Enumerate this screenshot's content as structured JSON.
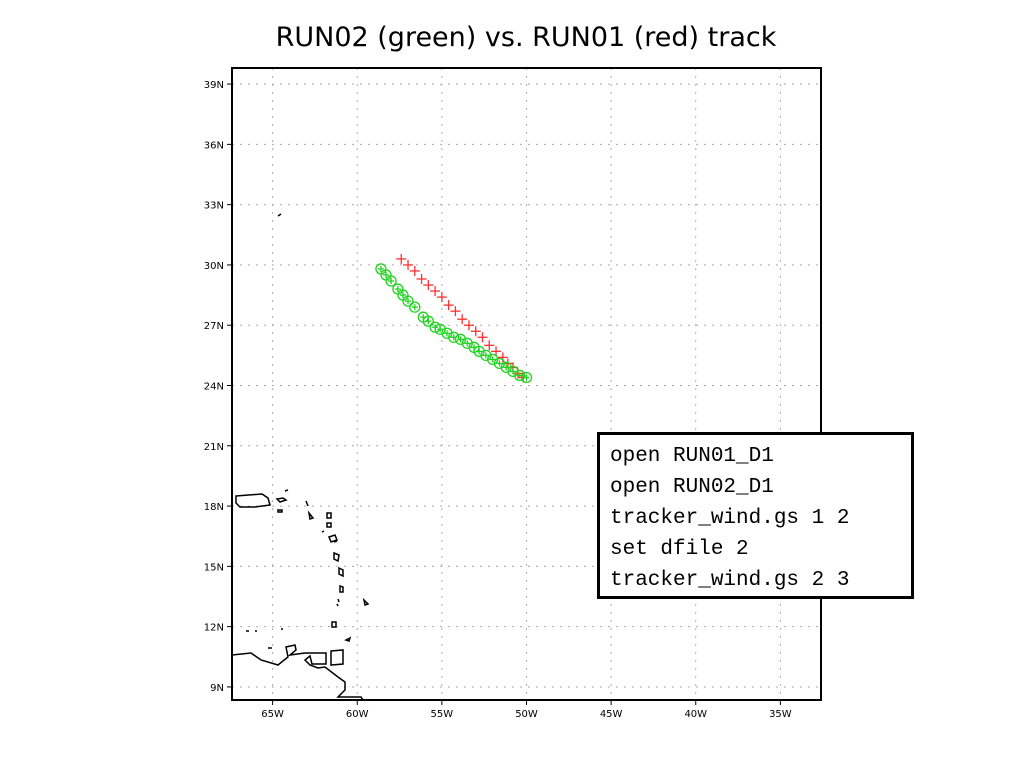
{
  "chart_data": {
    "type": "scatter",
    "title": "RUN02 (green) vs. RUN01 (red) track",
    "xlim": [
      -67.4,
      -32.6
    ],
    "ylim": [
      8.35,
      39.8
    ],
    "x_ticks": [
      -65,
      -60,
      -55,
      -50,
      -45,
      -40,
      -35
    ],
    "x_tick_labels": [
      "65W",
      "60W",
      "55W",
      "50W",
      "45W",
      "40W",
      "35W"
    ],
    "y_ticks": [
      9,
      12,
      15,
      18,
      21,
      24,
      27,
      30,
      33,
      36,
      39
    ],
    "y_tick_labels": [
      "9N",
      "12N",
      "15N",
      "18N",
      "21N",
      "24N",
      "27N",
      "30N",
      "33N",
      "36N",
      "39N"
    ],
    "grid": true,
    "map_background": "coastlines",
    "series": [
      {
        "name": "RUN01",
        "color": "#ff3030",
        "marker": "plus",
        "lon": [
          -57.4,
          -57.0,
          -56.6,
          -56.2,
          -55.8,
          -55.4,
          -55.0,
          -54.6,
          -54.2,
          -53.8,
          -53.4,
          -53.0,
          -52.6,
          -52.2,
          -51.8,
          -51.4,
          -51.1,
          -50.8,
          -50.5,
          -50.2
        ],
        "lat": [
          30.3,
          30.0,
          29.7,
          29.3,
          29.0,
          28.7,
          28.4,
          28.0,
          27.7,
          27.3,
          27.0,
          26.7,
          26.4,
          26.0,
          25.7,
          25.4,
          25.1,
          24.9,
          24.6,
          24.4
        ]
      },
      {
        "name": "RUN02",
        "color": "#1ed41e",
        "marker": "circle-cross",
        "lon": [
          -58.6,
          -58.3,
          -58.0,
          -57.6,
          -57.3,
          -57.0,
          -56.6,
          -56.1,
          -55.8,
          -55.4,
          -55.1,
          -54.7,
          -54.3,
          -53.9,
          -53.5,
          -53.1,
          -52.8,
          -52.4,
          -52.0,
          -51.6,
          -51.2,
          -50.8,
          -50.4,
          -50.0
        ],
        "lat": [
          29.8,
          29.5,
          29.2,
          28.8,
          28.5,
          28.2,
          27.9,
          27.4,
          27.2,
          26.9,
          26.8,
          26.6,
          26.4,
          26.3,
          26.1,
          25.9,
          25.7,
          25.5,
          25.3,
          25.1,
          24.9,
          24.7,
          24.5,
          24.4
        ]
      }
    ]
  },
  "annotation": {
    "lines": [
      "open RUN01_D1",
      "open RUN02_D1",
      "tracker_wind.gs 1 2",
      "set dfile 2",
      "tracker_wind.gs 2 3"
    ]
  }
}
